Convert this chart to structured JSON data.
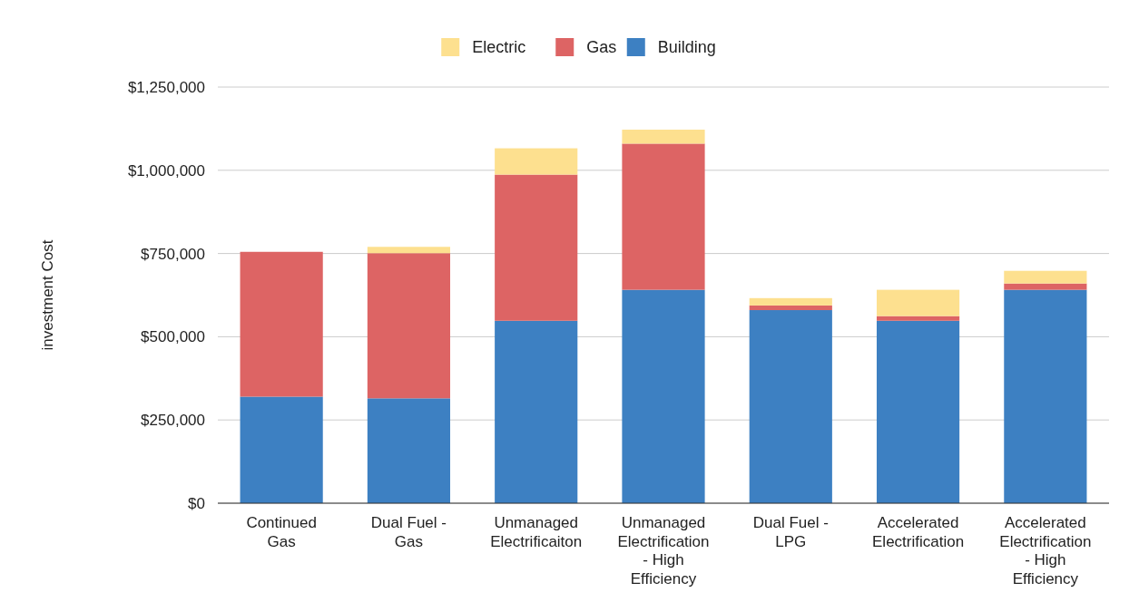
{
  "chart_data": {
    "type": "bar",
    "stacked": true,
    "ylabel": "investment Cost",
    "categories": [
      "Continued Gas",
      "Dual Fuel - Gas",
      "Unmanaged Electrificaiton",
      "Unmanaged Electrification - High Efficiency",
      "Dual Fuel - LPG",
      "Accelerated Electrification",
      "Accelerated Electrification - High Efficiency"
    ],
    "series": [
      {
        "name": "Building",
        "color": "#3d80c2",
        "values": [
          320000,
          315000,
          548000,
          641000,
          580000,
          548000,
          641000
        ]
      },
      {
        "name": "Gas",
        "color": "#dd6464",
        "values": [
          435000,
          436000,
          439000,
          439000,
          14000,
          14000,
          19000
        ]
      },
      {
        "name": "Electric",
        "color": "#fde08f",
        "values": [
          0,
          19000,
          79000,
          42000,
          22000,
          79000,
          38000
        ]
      }
    ],
    "ylim": [
      0,
      1250000
    ],
    "yticks": [
      {
        "value": 0,
        "label": "$0"
      },
      {
        "value": 250000,
        "label": "$250,000"
      },
      {
        "value": 500000,
        "label": "$500,000"
      },
      {
        "value": 750000,
        "label": "$750,000"
      },
      {
        "value": 1000000,
        "label": "$1,000,000"
      },
      {
        "value": 1250000,
        "label": "$1,250,000"
      }
    ],
    "grid": "y",
    "legend": "top"
  }
}
